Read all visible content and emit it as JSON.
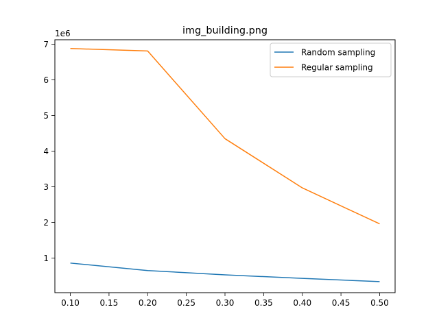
{
  "chart_data": {
    "type": "line",
    "title": "img_building.png",
    "xlabel": "",
    "ylabel": "",
    "y_offset_label": "1e6",
    "x": [
      0.1,
      0.2,
      0.3,
      0.4,
      0.5
    ],
    "x_ticks": [
      0.1,
      0.15,
      0.2,
      0.25,
      0.3,
      0.35,
      0.4,
      0.45,
      0.5
    ],
    "x_tick_labels": [
      "0.10",
      "0.15",
      "0.20",
      "0.25",
      "0.30",
      "0.35",
      "0.40",
      "0.45",
      "0.50"
    ],
    "y_ticks": [
      1,
      2,
      3,
      4,
      5,
      6,
      7
    ],
    "y_tick_labels": [
      "1",
      "2",
      "3",
      "4",
      "5",
      "6",
      "7"
    ],
    "xlim": [
      0.08,
      0.52
    ],
    "ylim": [
      0.0295,
      7.125
    ],
    "grid": false,
    "legend_position": "top-right",
    "series": [
      {
        "name": "Random sampling",
        "color": "#1f77b4",
        "values": [
          0.86,
          0.65,
          0.53,
          0.43,
          0.34
        ]
      },
      {
        "name": "Regular sampling",
        "color": "#ff7f0e",
        "values": [
          6.88,
          6.81,
          4.35,
          2.97,
          1.96
        ]
      }
    ]
  }
}
